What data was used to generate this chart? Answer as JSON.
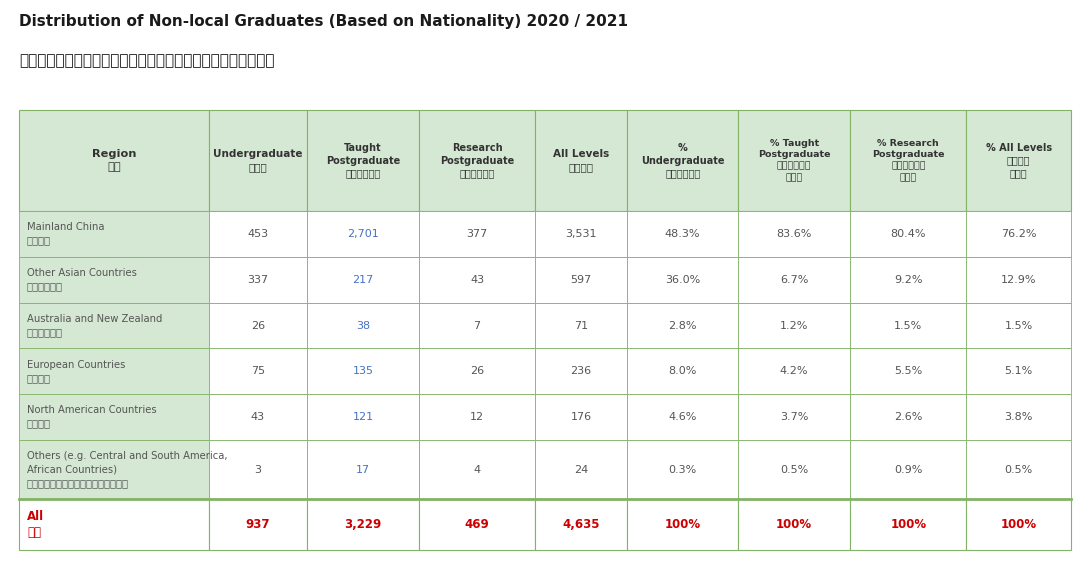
{
  "title_line1": "Distribution of Non-local Graduates (Based on Nationality) 2020 / 2021",
  "title_line2": "二零二零／二零二一年度非本地畢業生（以國籍金定）分佈人數",
  "header_texts": [
    "Region\n地區",
    "Undergraduate\n本科生",
    "Taught\nPostgraduate\n修課式研究生",
    "Research\nPostgraduate\n研究式研究生",
    "All Levels\n全部課程",
    "%\nUndergraduate\n本科生百分比",
    "% Taught\nPostgraduate\n修課式研究生\n百分比",
    "% Research\nPostgraduate\n研究式研究生\n百分比",
    "% All Levels\n全部課程\n百分比"
  ],
  "rows": [
    {
      "region_en": "Mainland China",
      "region_zh": "中國內地",
      "vals": [
        "453",
        "2,701",
        "377",
        "3,531",
        "48.3%",
        "83.6%",
        "80.4%",
        "76.2%"
      ]
    },
    {
      "region_en": "Other Asian Countries",
      "region_zh": "其他亞洲國家",
      "vals": [
        "337",
        "217",
        "43",
        "597",
        "36.0%",
        "6.7%",
        "9.2%",
        "12.9%"
      ]
    },
    {
      "region_en": "Australia and New Zealand",
      "region_zh": "澳洲及新西蘭",
      "vals": [
        "26",
        "38",
        "7",
        "71",
        "2.8%",
        "1.2%",
        "1.5%",
        "1.5%"
      ]
    },
    {
      "region_en": "European Countries",
      "region_zh": "歐洲國家",
      "vals": [
        "75",
        "135",
        "26",
        "236",
        "8.0%",
        "4.2%",
        "5.5%",
        "5.1%"
      ]
    },
    {
      "region_en": "North American Countries",
      "region_zh": "北美國家",
      "vals": [
        "43",
        "121",
        "12",
        "176",
        "4.6%",
        "3.7%",
        "2.6%",
        "3.8%"
      ]
    },
    {
      "region_en": "Others (e.g. Central and South America,\nAfrican Countries)",
      "region_zh": "其他（例如：中美及南美、非洲國家）",
      "vals": [
        "3",
        "17",
        "4",
        "24",
        "0.3%",
        "0.5%",
        "0.9%",
        "0.5%"
      ]
    }
  ],
  "total": {
    "region_en": "All",
    "region_zh": "總計",
    "vals": [
      "937",
      "3,229",
      "469",
      "4,635",
      "100%",
      "100%",
      "100%",
      "100%"
    ]
  },
  "header_bg": "#d5e8d4",
  "white": "#ffffff",
  "region_bg": "#d5e8d4",
  "border_color": "#82b366",
  "thin_border": "#aaaaaa",
  "header_text_color": "#333333",
  "data_text_color": "#555555",
  "blue_color": "#4472c4",
  "red_color": "#cc0000",
  "title_color": "#1a1a1a",
  "bg_color": "#ffffff"
}
